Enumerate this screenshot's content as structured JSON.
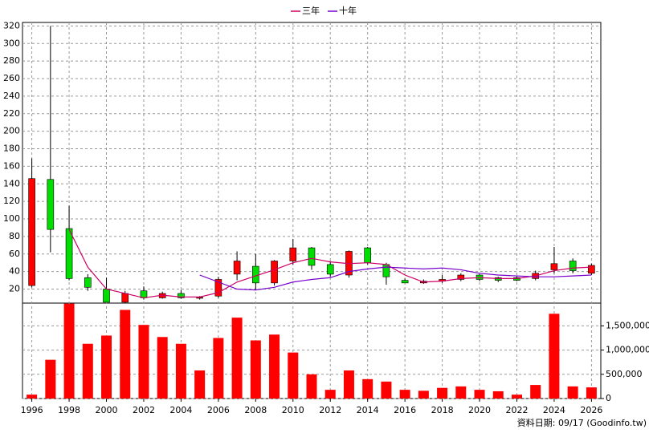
{
  "chart_data": [
    {
      "type": "candlestick",
      "legend": "top",
      "up_color": "#ff0000",
      "down_color": "#00dd00",
      "wick_color": "#000000",
      "x": [
        1996,
        1997,
        1998,
        1999,
        2000,
        2001,
        2002,
        2003,
        2004,
        2005,
        2006,
        2007,
        2008,
        2009,
        2010,
        2011,
        2012,
        2013,
        2014,
        2015,
        2016,
        2017,
        2018,
        2019,
        2020,
        2021,
        2022,
        2023,
        2024,
        2025,
        2026
      ],
      "open": [
        24,
        145,
        89,
        33,
        20,
        5,
        18,
        10,
        15,
        9.5,
        12,
        37,
        46,
        27,
        52,
        67,
        48,
        36,
        67,
        48,
        30,
        27,
        29,
        31,
        36,
        33,
        33,
        32,
        42,
        52,
        38
      ],
      "high": [
        169,
        320,
        115,
        37,
        33,
        18,
        23,
        17,
        19,
        12,
        34,
        63,
        60,
        53,
        77,
        68,
        52,
        64,
        68,
        50,
        32,
        31,
        36,
        38,
        37,
        34,
        35,
        41,
        68,
        55,
        49
      ],
      "low": [
        22,
        62,
        30,
        18,
        5,
        4,
        8,
        9,
        9,
        8,
        10,
        30,
        19,
        24,
        48,
        42,
        34,
        33,
        48,
        25,
        27,
        26,
        27,
        29,
        29,
        28,
        29,
        30,
        38,
        38,
        36
      ],
      "close": [
        146,
        88,
        32,
        22,
        5,
        15,
        10,
        15,
        10,
        10.5,
        31,
        52,
        27,
        52,
        67,
        47,
        37,
        63,
        50,
        34,
        27,
        29,
        31,
        36,
        31,
        30,
        30,
        38,
        49,
        41,
        47
      ],
      "series": [
        {
          "name": "三年",
          "color": "#cc0066",
          "values": [
            null,
            null,
            88,
            45,
            20,
            15,
            10,
            13,
            11,
            11,
            16,
            28,
            35,
            42,
            50,
            55,
            51,
            49,
            50,
            48,
            36,
            28,
            29,
            32,
            33,
            32,
            32,
            35,
            41,
            44,
            45
          ]
        },
        {
          "name": "十年",
          "color": "#7700cc",
          "values": [
            null,
            null,
            null,
            null,
            null,
            null,
            null,
            null,
            null,
            36,
            28,
            20,
            19,
            22,
            28,
            31,
            33,
            40,
            43,
            45,
            44,
            43,
            44,
            42,
            38,
            36,
            35,
            34,
            34,
            35,
            36
          ]
        }
      ],
      "xlim": [
        1995.5,
        2026.5
      ],
      "ylim": [
        4,
        324
      ],
      "yticks": [
        20,
        40,
        60,
        80,
        100,
        120,
        140,
        160,
        180,
        200,
        220,
        240,
        260,
        280,
        300,
        320
      ],
      "grid": true
    },
    {
      "type": "bar",
      "color": "#ff0000",
      "x": [
        1996,
        1997,
        1998,
        1999,
        2000,
        2001,
        2002,
        2003,
        2004,
        2005,
        2006,
        2007,
        2008,
        2009,
        2010,
        2011,
        2012,
        2013,
        2014,
        2015,
        2016,
        2017,
        2018,
        2019,
        2020,
        2021,
        2022,
        2023,
        2024,
        2025,
        2026
      ],
      "values": [
        80000,
        800000,
        1960000,
        1130000,
        1300000,
        1830000,
        1520000,
        1270000,
        1130000,
        580000,
        1250000,
        1670000,
        1200000,
        1320000,
        950000,
        500000,
        180000,
        580000,
        400000,
        350000,
        180000,
        160000,
        220000,
        250000,
        180000,
        150000,
        80000,
        280000,
        1750000,
        250000,
        230000
      ],
      "xlim": [
        1995.5,
        2026.5
      ],
      "xticks": [
        1996,
        1998,
        2000,
        2002,
        2004,
        2006,
        2008,
        2010,
        2012,
        2014,
        2016,
        2018,
        2020,
        2022,
        2024,
        2026
      ],
      "ylim": [
        0,
        1970000
      ],
      "yticks": [
        0,
        {
          "value": 500000,
          "label": "500,000"
        },
        {
          "value": 1000000,
          "label": "1,000,000"
        },
        {
          "value": 1500000,
          "label": "1,500,000"
        }
      ],
      "grid": true,
      "note": "資料日期: 09/17 (Goodinfo.tw)"
    }
  ]
}
